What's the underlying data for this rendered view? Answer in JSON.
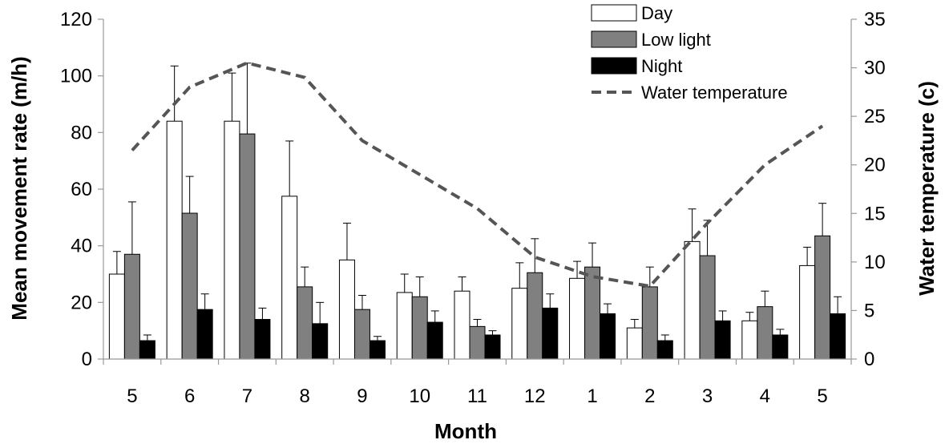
{
  "chart_data": {
    "type": "bar",
    "title": "",
    "xlabel": "Month",
    "ylabel": "Mean movement rate (m/h)",
    "y2label": "Water temperature (c)",
    "categories": [
      "5",
      "6",
      "7",
      "8",
      "9",
      "10",
      "11",
      "12",
      "1",
      "2",
      "3",
      "4",
      "5"
    ],
    "ylim": [
      0,
      120
    ],
    "yticks": [
      "0",
      "20",
      "40",
      "60",
      "80",
      "100",
      "120"
    ],
    "y2lim": [
      0,
      35
    ],
    "y2ticks": [
      "0",
      "5",
      "10",
      "15",
      "20",
      "25",
      "30",
      "35"
    ],
    "grid": false,
    "legend_position": "top-right",
    "series": [
      {
        "name": "Day",
        "kind": "bar",
        "color": "#ffffff",
        "values": [
          30,
          84,
          84,
          57.5,
          35,
          23.5,
          24,
          25,
          28.5,
          11,
          41.5,
          13.5,
          33
        ],
        "errors": [
          8,
          19.5,
          17,
          19.5,
          13,
          6.5,
          5,
          9,
          6,
          3,
          11.5,
          3,
          6.5
        ]
      },
      {
        "name": "Low light",
        "kind": "bar",
        "color": "#808080",
        "values": [
          37,
          51.5,
          79.5,
          25.5,
          17.5,
          22,
          11.5,
          30.5,
          32.5,
          25.5,
          36.5,
          18.5,
          43.5
        ],
        "errors": [
          18.5,
          13,
          25,
          7,
          5,
          7,
          2.5,
          12,
          8.5,
          7,
          12.5,
          5.5,
          11.5
        ]
      },
      {
        "name": "Night",
        "kind": "bar",
        "color": "#000000",
        "values": [
          6.5,
          17.5,
          14,
          12.5,
          6.5,
          13,
          8.5,
          18,
          16,
          6.5,
          13.5,
          8.5,
          16
        ],
        "errors": [
          2,
          5.5,
          4,
          7.5,
          1.5,
          4,
          1.5,
          5,
          3.5,
          2,
          3.5,
          2,
          6
        ]
      },
      {
        "name": "Water temperature",
        "kind": "line",
        "axis": "y2",
        "color": "#555555",
        "dash": true,
        "values": [
          21.5,
          28,
          30.5,
          29,
          22.5,
          19,
          15.5,
          10.5,
          8.5,
          7.5,
          14,
          20,
          24
        ]
      }
    ]
  }
}
